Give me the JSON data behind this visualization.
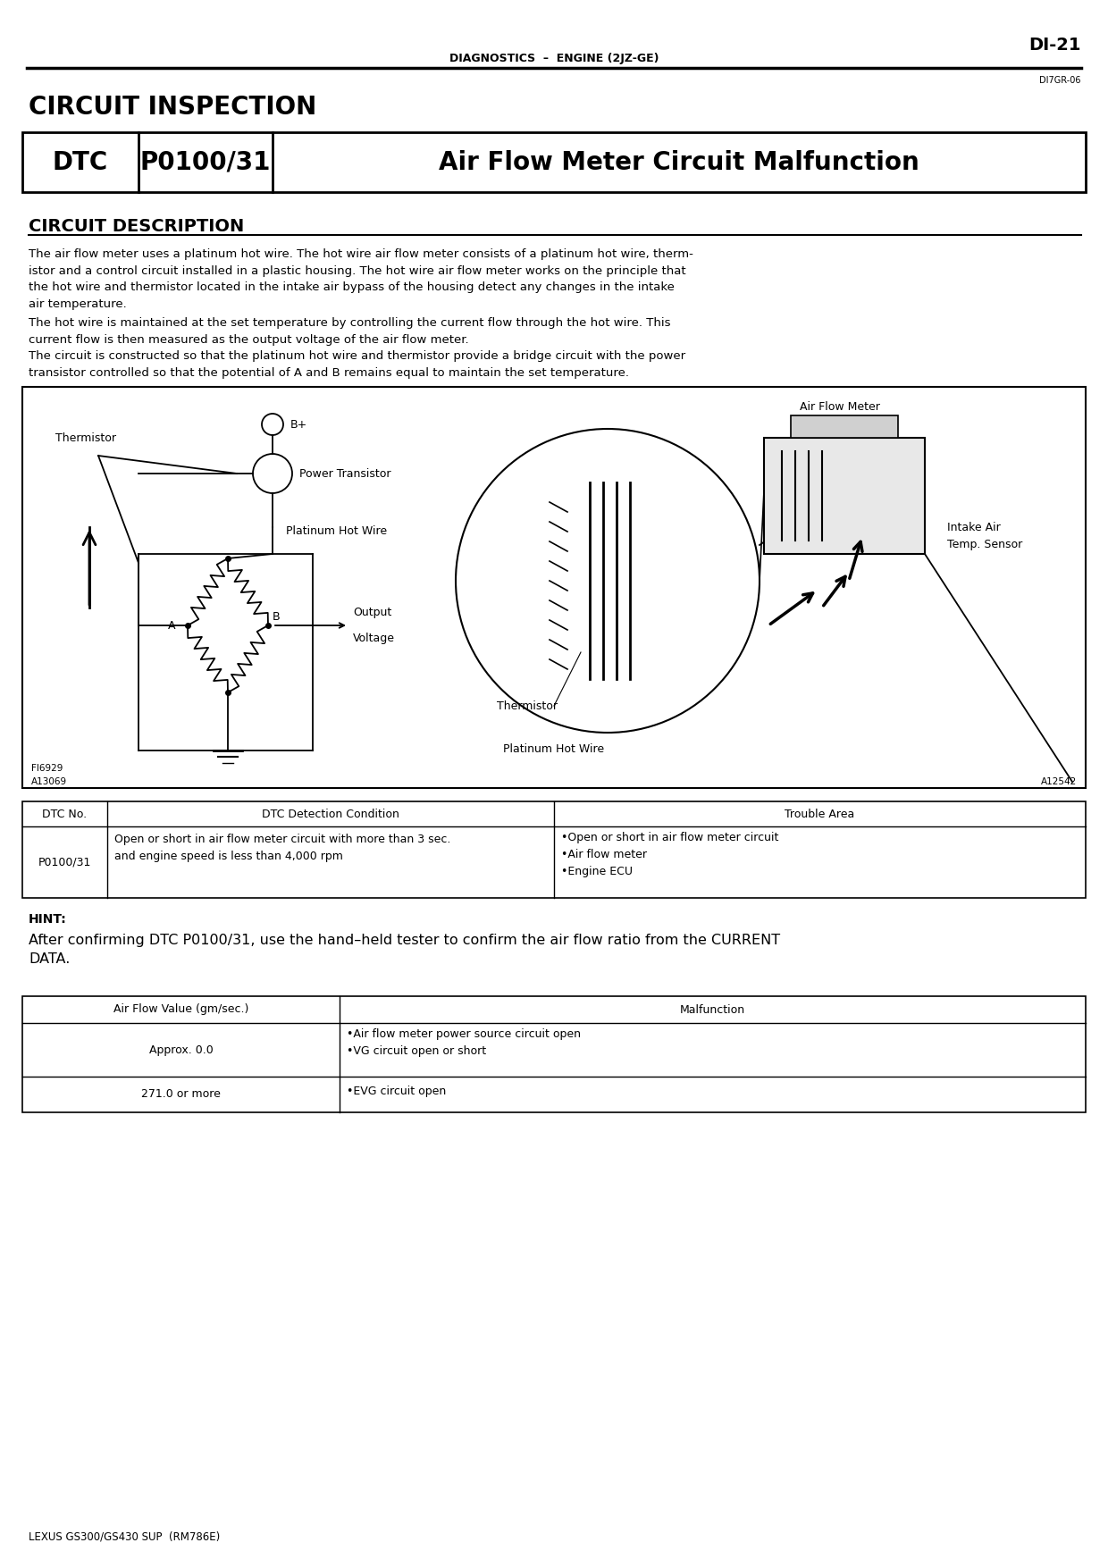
{
  "page_num": "DI-21",
  "header_center": "DIAGNOSTICS  –  ENGINE (2JZ-GE)",
  "header_code": "DI7GR-06",
  "section_title": "CIRCUIT INSPECTION",
  "dtc_col1": "DTC",
  "dtc_col2": "P0100/31",
  "dtc_col3": "Air Flow Meter Circuit Malfunction",
  "desc_title": "CIRCUIT DESCRIPTION",
  "desc_para1": "The air flow meter uses a platinum hot wire. The hot wire air flow meter consists of a platinum hot wire, therm-\nistor and a control circuit installed in a plastic housing. The hot wire air flow meter works on the principle that\nthe hot wire and thermistor located in the intake air bypass of the housing detect any changes in the intake\nair temperature.",
  "desc_para2": "The hot wire is maintained at the set temperature by controlling the current flow through the hot wire. This\ncurrent flow is then measured as the output voltage of the air flow meter.",
  "desc_para3": "The circuit is constructed so that the platinum hot wire and thermistor provide a bridge circuit with the power\ntransistor controlled so that the potential of A and B remains equal to maintain the set temperature.",
  "fig_label1": "FI6929",
  "fig_label2": "A13069",
  "fig_label3": "A12542",
  "table1_headers": [
    "DTC No.",
    "DTC Detection Condition",
    "Trouble Area"
  ],
  "table1_row1_col1": "P0100/31",
  "table1_row1_col2": "Open or short in air flow meter circuit with more than 3 sec.\nand engine speed is less than 4,000 rpm",
  "table1_row1_col3": "•Open or short in air flow meter circuit\n•Air flow meter\n•Engine ECU",
  "hint_label": "HINT:",
  "hint_text": "After confirming DTC P0100/31, use the hand–held tester to confirm the air flow ratio from the CURRENT\nDATA.",
  "table2_headers": [
    "Air Flow Value (gm/sec.)",
    "Malfunction"
  ],
  "table2_row1_col1": "Approx. 0.0",
  "table2_row1_col2": "•Air flow meter power source circuit open\n•VG circuit open or short",
  "table2_row2_col1": "271.0 or more",
  "table2_row2_col2": "•EVG circuit open",
  "footer": "LEXUS GS300/GS430 SUP  (RM786E)",
  "bg_color": "#ffffff"
}
